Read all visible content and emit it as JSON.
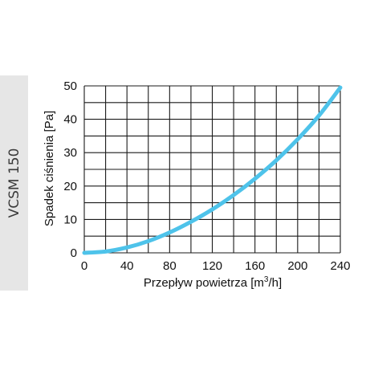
{
  "product_label": "VCSM 150",
  "chart_data": {
    "type": "line",
    "xlabel_main": "Przepływ powietrza [m",
    "xlabel_sup": "3",
    "xlabel_end": "/h]",
    "ylabel": "Spadek ciśnienia [Pa]",
    "xlim": [
      0,
      240
    ],
    "ylim": [
      0,
      50
    ],
    "x_ticks": [
      "0",
      "40",
      "80",
      "120",
      "160",
      "200",
      "240"
    ],
    "y_ticks": [
      "0",
      "10",
      "20",
      "30",
      "40",
      "50"
    ],
    "grid": true,
    "colors": {
      "series": "#4ec3ea",
      "grid": "#1a1a1a"
    },
    "series": [
      {
        "x": [
          0,
          20,
          40,
          60,
          80,
          100,
          120,
          140,
          160,
          180,
          200,
          220,
          240
        ],
        "y": [
          0,
          0.4,
          1.6,
          3.5,
          6.1,
          9.3,
          13.0,
          17.3,
          22.2,
          27.7,
          34.0,
          41.1,
          49.5
        ]
      }
    ]
  }
}
